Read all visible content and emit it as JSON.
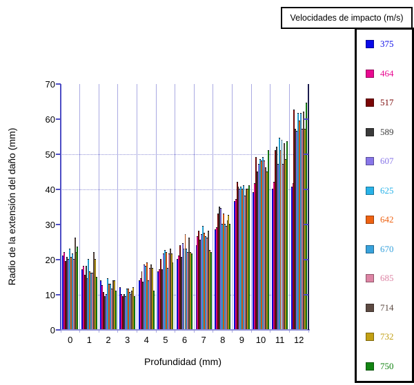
{
  "chart_data": {
    "type": "bar",
    "title": "",
    "xlabel": "Profundidad (mm)",
    "ylabel": "Radio de la extensión del daño (mm)",
    "legend_title": "Velocidades de impacto (m/s)",
    "legend_position": "right",
    "categories": [
      "0",
      "1",
      "2",
      "3",
      "4",
      "5",
      "6",
      "7",
      "8",
      "9",
      "10",
      "11",
      "12"
    ],
    "ylim": [
      0,
      70
    ],
    "y_ticks": [
      0,
      10,
      20,
      30,
      40,
      50,
      60,
      70
    ],
    "h_gridlines": [
      10,
      40,
      50
    ],
    "grid": "horizontal dotted at 10/40/50, vertical solid at every category boundary",
    "series": [
      {
        "name": "375",
        "color": "#0a0ae8",
        "values": [
          21,
          17,
          14,
          12,
          14,
          16.5,
          20,
          24,
          28.5,
          36.5,
          39,
          40,
          40.5
        ]
      },
      {
        "name": "464",
        "color": "#e80890",
        "values": [
          22,
          18,
          12.5,
          10,
          14.5,
          17,
          21,
          26.5,
          29,
          37,
          41.5,
          42,
          41.5
        ]
      },
      {
        "name": "517",
        "color": "#7a0606",
        "values": [
          19.5,
          15.5,
          10.5,
          9.5,
          16.5,
          20,
          24,
          28,
          33,
          42,
          49,
          51,
          62.5
        ]
      },
      {
        "name": "589",
        "color": "#3a3a3a",
        "values": [
          20.5,
          18,
          9.5,
          10,
          13.5,
          17,
          20.5,
          25.5,
          35,
          40.5,
          45,
          52,
          57
        ]
      },
      {
        "name": "607",
        "color": "#8876e8",
        "values": [
          20,
          14.5,
          10,
          9.5,
          18.5,
          21.5,
          24.5,
          27,
          34.5,
          40,
          47,
          47,
          56.5
        ]
      },
      {
        "name": "625",
        "color": "#28b2e8",
        "values": [
          23,
          20,
          14.5,
          11.5,
          18,
          22.5,
          23,
          29.5,
          30,
          40.5,
          48.5,
          54.5,
          61.5
        ]
      },
      {
        "name": "642",
        "color": "#ee6212",
        "values": [
          20.5,
          16.5,
          13,
          11.5,
          19,
          22,
          27,
          27.5,
          33,
          40,
          48,
          51,
          59.5
        ]
      },
      {
        "name": "670",
        "color": "#38a2dc",
        "values": [
          21.5,
          16,
          13,
          10.5,
          14,
          17.5,
          23,
          26.5,
          30,
          41,
          49,
          54,
          61.5
        ]
      },
      {
        "name": "685",
        "color": "#dd84a4",
        "values": [
          20,
          16,
          11.5,
          10,
          17.5,
          21.5,
          22,
          26,
          29.5,
          38,
          48,
          47,
          57
        ]
      },
      {
        "name": "714",
        "color": "#5c4a42",
        "values": [
          26,
          22,
          14,
          11,
          18.5,
          23,
          26,
          28,
          31,
          40,
          46,
          53,
          62
        ]
      },
      {
        "name": "732",
        "color": "#c2a014",
        "values": [
          22,
          20,
          14,
          12,
          17.5,
          21.5,
          22,
          22.5,
          32.5,
          40,
          45,
          48.5,
          57
        ]
      },
      {
        "name": "750",
        "color": "#128412",
        "values": [
          23.5,
          15,
          11,
          9.5,
          11,
          19,
          21.5,
          22,
          30,
          41,
          51,
          53.5,
          64.5
        ]
      }
    ]
  },
  "style_colors": {
    "y_axis": "#4c4cc4",
    "x_axis": "#8f8fd8",
    "right_frame": "#1b1b4e",
    "gridline": "#a0a0dd",
    "legend_border": "#000000",
    "background": "#ffffff"
  }
}
